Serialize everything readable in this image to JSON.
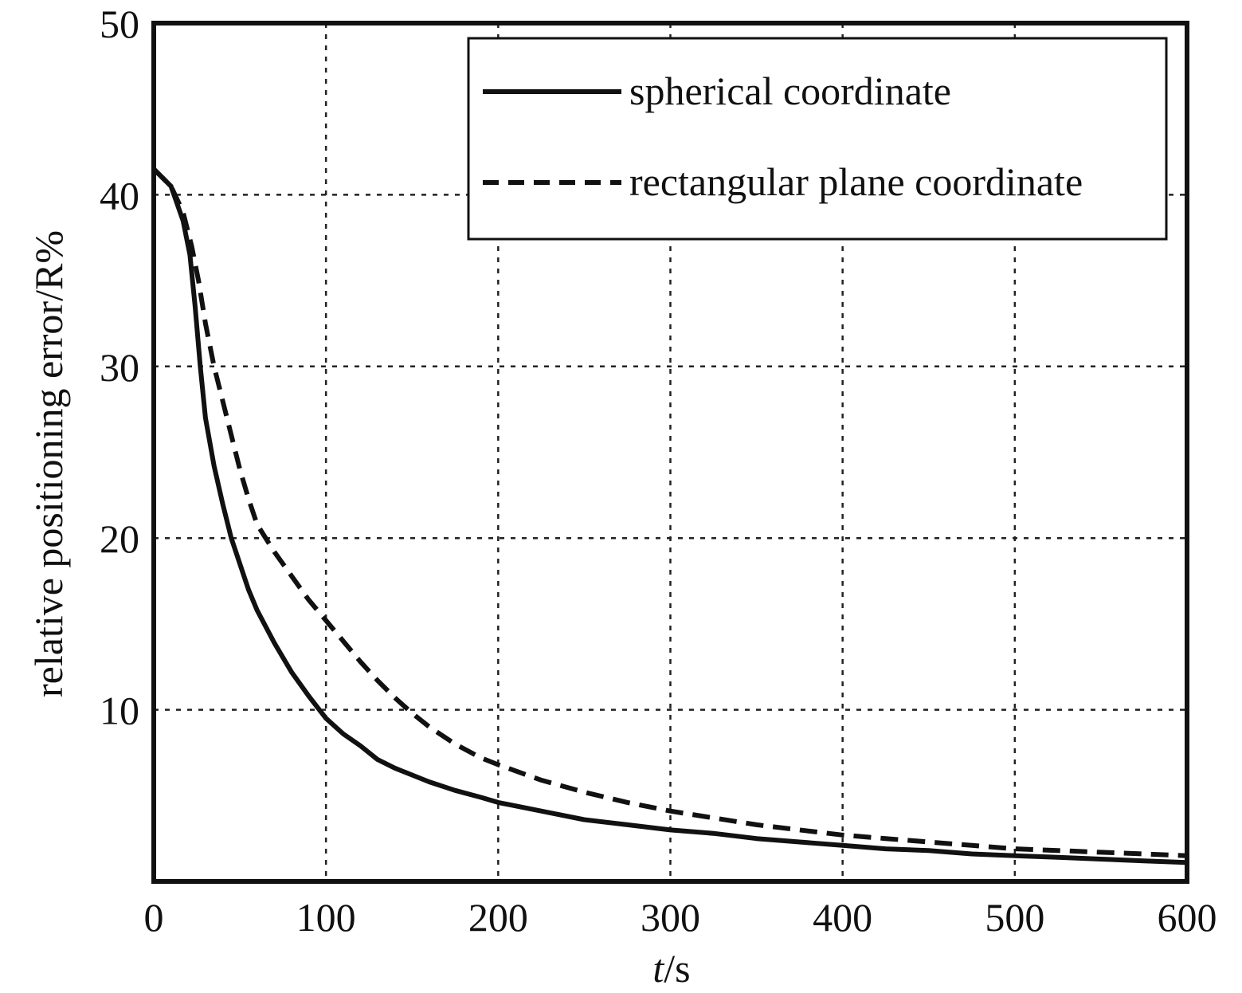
{
  "chart_data": {
    "type": "line",
    "title": "",
    "xlabel_italic": "t",
    "xlabel_rest": "/s",
    "ylabel": "relative positioning error/R%",
    "xlim": [
      0,
      600
    ],
    "ylim": [
      0,
      50
    ],
    "xticks": [
      0,
      100,
      200,
      300,
      400,
      500,
      600
    ],
    "yticks": [
      10,
      20,
      30,
      40,
      50
    ],
    "xtick_labels": [
      "0",
      "100",
      "200",
      "300",
      "400",
      "500",
      "600"
    ],
    "ytick_labels": [
      "10",
      "20",
      "30",
      "40",
      "50"
    ],
    "grid": true,
    "legend_position": "top-right",
    "series": [
      {
        "name": "spherical coordinate",
        "style": "solid",
        "color": "#111111",
        "x": [
          0,
          10,
          17,
          21,
          24,
          27,
          30,
          35,
          40,
          45,
          50,
          55,
          60,
          70,
          80,
          90,
          100,
          110,
          120,
          130,
          140,
          150,
          160,
          175,
          190,
          200,
          225,
          250,
          275,
          300,
          325,
          350,
          375,
          400,
          425,
          450,
          475,
          500,
          525,
          550,
          575,
          600
        ],
        "y": [
          41.5,
          40.5,
          38.5,
          36.5,
          33.5,
          30.0,
          27.0,
          24.2,
          22.0,
          20.0,
          18.5,
          17.0,
          15.8,
          13.9,
          12.2,
          10.8,
          9.5,
          8.6,
          7.9,
          7.1,
          6.6,
          6.2,
          5.8,
          5.3,
          4.9,
          4.6,
          4.1,
          3.6,
          3.3,
          3.0,
          2.8,
          2.5,
          2.3,
          2.1,
          1.9,
          1.8,
          1.6,
          1.5,
          1.4,
          1.3,
          1.2,
          1.1
        ]
      },
      {
        "name": "rectangular plane coordinate",
        "style": "dashed",
        "color": "#111111",
        "x": [
          0,
          10,
          17,
          22,
          26,
          30,
          35,
          40,
          45,
          50,
          55,
          60,
          70,
          80,
          90,
          100,
          110,
          120,
          130,
          140,
          150,
          160,
          175,
          190,
          200,
          225,
          250,
          275,
          300,
          325,
          350,
          375,
          400,
          425,
          450,
          475,
          500,
          525,
          550,
          575,
          600
        ],
        "y": [
          41.5,
          40.5,
          39.0,
          37.0,
          35.0,
          32.5,
          30.0,
          28.0,
          26.0,
          24.0,
          22.3,
          20.8,
          19.2,
          17.8,
          16.4,
          15.2,
          14.0,
          12.8,
          11.7,
          10.7,
          9.8,
          9.0,
          8.0,
          7.2,
          6.8,
          5.9,
          5.2,
          4.6,
          4.1,
          3.7,
          3.3,
          3.0,
          2.7,
          2.5,
          2.3,
          2.1,
          1.9,
          1.8,
          1.7,
          1.6,
          1.5
        ]
      }
    ]
  }
}
